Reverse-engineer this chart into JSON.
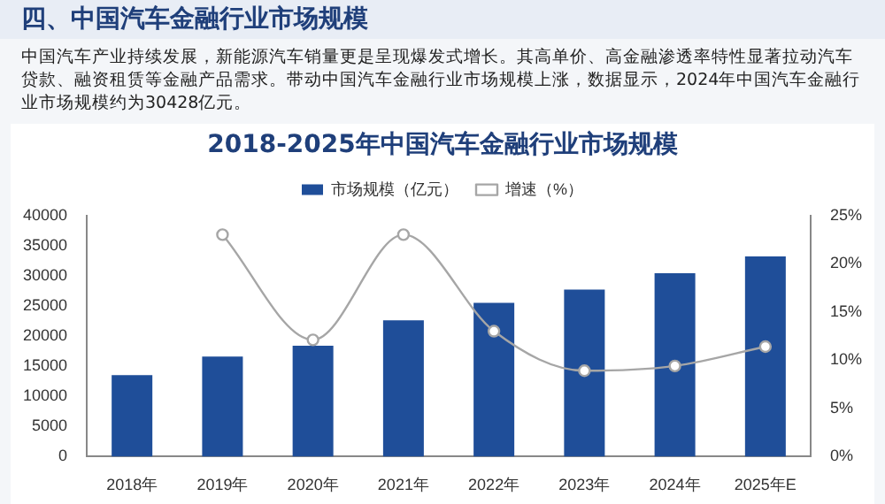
{
  "chart_data": {
    "type": "bar",
    "title": "2018-2025年中国汽车金融行业市场规模",
    "annotations": [
      "四、中国汽车金融行业市场规模",
      "中国汽车产业持续发展，新能源汽车销量更是呈现爆发式增长。其高单价、高金融渗透率特性显著拉动汽车贷款、融资租赁等金融产品需求。带动中国汽车金融行业市场规模上涨，数据显示，2024年中国汽车金融行业市场规模约为30428亿元。"
    ],
    "categories": [
      "2018年",
      "2019年",
      "2020年",
      "2021年",
      "2022年",
      "2023年",
      "2024年",
      "2025年E"
    ],
    "series": [
      {
        "name": "市场规模（亿元）",
        "color": "#1f4e99",
        "values": [
          13500,
          16600,
          18400,
          22600,
          25500,
          27700,
          30400,
          33200
        ]
      },
      {
        "name": "增速（%）",
        "type": "line",
        "axis": "y2",
        "color": "#a6a6a6",
        "marker": "circle",
        "values": [
          null,
          23,
          12.1,
          23,
          13,
          8.9,
          9.4,
          11.4
        ]
      }
    ],
    "ylim": [
      0,
      40000
    ],
    "yticks": [
      0,
      5000,
      10000,
      15000,
      20000,
      25000,
      30000,
      35000,
      40000
    ],
    "y2lim": [
      0,
      25
    ],
    "y2ticks": [
      {
        "value": 0,
        "label": "0%"
      },
      {
        "value": 5,
        "label": "5%"
      },
      {
        "value": 10,
        "label": "10%"
      },
      {
        "value": 15,
        "label": "15%"
      },
      {
        "value": 20,
        "label": "20%"
      },
      {
        "value": 25,
        "label": "25%"
      }
    ],
    "grid": false,
    "legend": "top"
  }
}
